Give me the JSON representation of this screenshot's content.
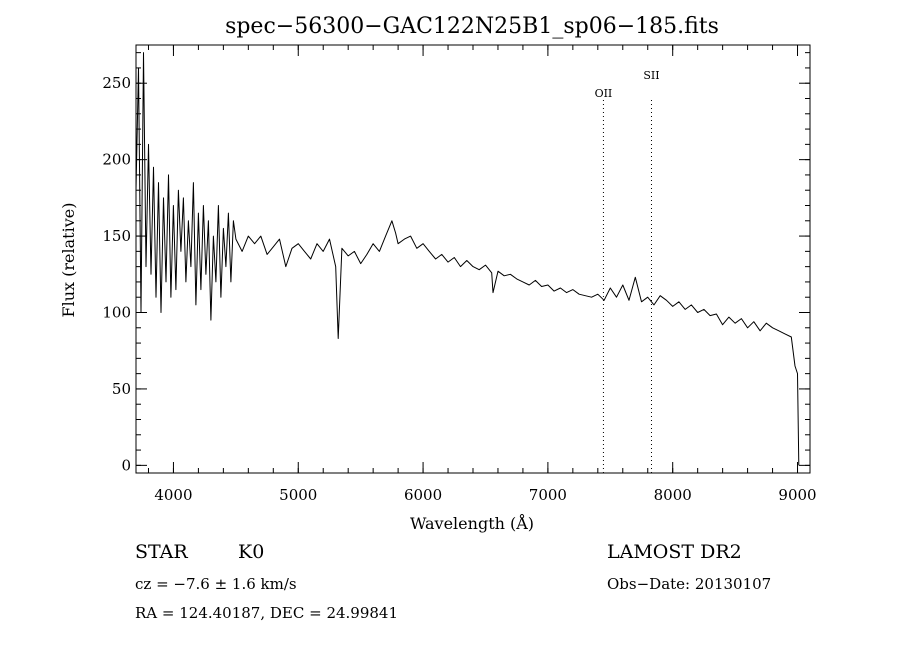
{
  "chart_data": {
    "type": "line",
    "title": "spec−56300−GAC122N25B1_sp06−185.fits",
    "xlabel": "Wavelength (Å)",
    "ylabel": "Flux (relative)",
    "xlim": [
      3700,
      9100
    ],
    "ylim": [
      -5,
      275
    ],
    "xticks": [
      4000,
      5000,
      6000,
      7000,
      8000,
      9000
    ],
    "yticks": [
      0,
      50,
      100,
      150,
      200,
      250
    ],
    "x_minor_step": 200,
    "y_minor_step": 10,
    "series": [
      {
        "x": [
          3700,
          3720,
          3740,
          3760,
          3780,
          3800,
          3820,
          3840,
          3860,
          3880,
          3900,
          3920,
          3940,
          3960,
          3980,
          4000,
          4020,
          4040,
          4060,
          4080,
          4100,
          4120,
          4140,
          4160,
          4180,
          4200,
          4220,
          4240,
          4260,
          4280,
          4300,
          4320,
          4340,
          4360,
          4380,
          4400,
          4420,
          4440,
          4460,
          4480,
          4500,
          4550,
          4600,
          4650,
          4700,
          4750,
          4800,
          4850,
          4900,
          4950,
          5000,
          5050,
          5100,
          5150,
          5200,
          5250,
          5300,
          5320,
          5350,
          5400,
          5450,
          5500,
          5550,
          5600,
          5650,
          5700,
          5750,
          5780,
          5800,
          5850,
          5900,
          5950,
          6000,
          6050,
          6100,
          6150,
          6200,
          6250,
          6300,
          6350,
          6400,
          6450,
          6500,
          6550,
          6560,
          6600,
          6650,
          6700,
          6750,
          6800,
          6850,
          6900,
          6950,
          7000,
          7050,
          7100,
          7150,
          7200,
          7250,
          7300,
          7350,
          7400,
          7450,
          7500,
          7550,
          7600,
          7650,
          7700,
          7750,
          7800,
          7850,
          7900,
          7950,
          8000,
          8050,
          8100,
          8150,
          8200,
          8250,
          8300,
          8350,
          8400,
          8450,
          8500,
          8550,
          8600,
          8650,
          8700,
          8750,
          8800,
          8850,
          8900,
          8950,
          8980,
          9000,
          9010
        ],
        "y": [
          180,
          260,
          100,
          270,
          130,
          210,
          125,
          195,
          110,
          185,
          100,
          175,
          120,
          190,
          110,
          170,
          115,
          180,
          140,
          175,
          120,
          160,
          130,
          185,
          105,
          165,
          115,
          170,
          125,
          160,
          95,
          150,
          120,
          170,
          110,
          155,
          130,
          165,
          120,
          160,
          148,
          140,
          150,
          145,
          150,
          138,
          143,
          148,
          130,
          142,
          145,
          140,
          135,
          145,
          140,
          148,
          130,
          83,
          142,
          137,
          140,
          132,
          138,
          145,
          140,
          150,
          160,
          152,
          145,
          148,
          150,
          142,
          145,
          140,
          135,
          138,
          133,
          136,
          130,
          134,
          130,
          128,
          131,
          126,
          113,
          127,
          124,
          125,
          122,
          120,
          118,
          121,
          117,
          118,
          114,
          116,
          113,
          115,
          112,
          111,
          110,
          112,
          108,
          116,
          110,
          118,
          108,
          123,
          107,
          110,
          105,
          111,
          108,
          104,
          107,
          102,
          105,
          100,
          102,
          98,
          99,
          92,
          97,
          93,
          96,
          90,
          94,
          88,
          93,
          90,
          88,
          86,
          84,
          65,
          60,
          0
        ]
      }
    ],
    "annotations": [
      {
        "label": "OII",
        "x": 7445
      },
      {
        "label": "SII",
        "x": 7830
      }
    ]
  },
  "footer": {
    "object_type": "STAR",
    "subclass": "K0",
    "survey": "LAMOST DR2",
    "redshift": "cz = −7.6 ± 1.6 km/s",
    "obs_date": "Obs−Date: 20130107",
    "coords": "RA = 124.40187, DEC =  24.99841"
  }
}
